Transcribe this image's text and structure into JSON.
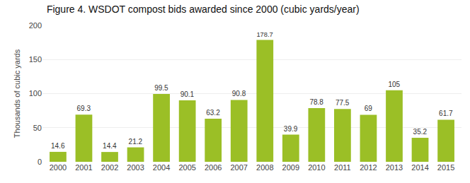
{
  "chart_data": {
    "type": "bar",
    "title": "Figure 4. WSDOT compost bids awarded since 2000 (cubic yards/year)",
    "ylabel": "Thousands of cubic yards",
    "categories": [
      "2000",
      "2001",
      "2002",
      "2003",
      "2004",
      "2005",
      "2006",
      "2007",
      "2008",
      "2009",
      "2010",
      "2011",
      "2012",
      "2013",
      "2014",
      "2015"
    ],
    "values": [
      14.6,
      69.3,
      14.4,
      21.2,
      99.5,
      90.1,
      63.2,
      90.8,
      178.7,
      39.9,
      78.8,
      77.5,
      69.0,
      105,
      35.2,
      61.7
    ],
    "color": "#9BBF26",
    "ylim": [
      0,
      200
    ],
    "yticks": [
      0,
      50,
      100,
      150,
      200
    ],
    "grid": true,
    "data_labels": true
  }
}
